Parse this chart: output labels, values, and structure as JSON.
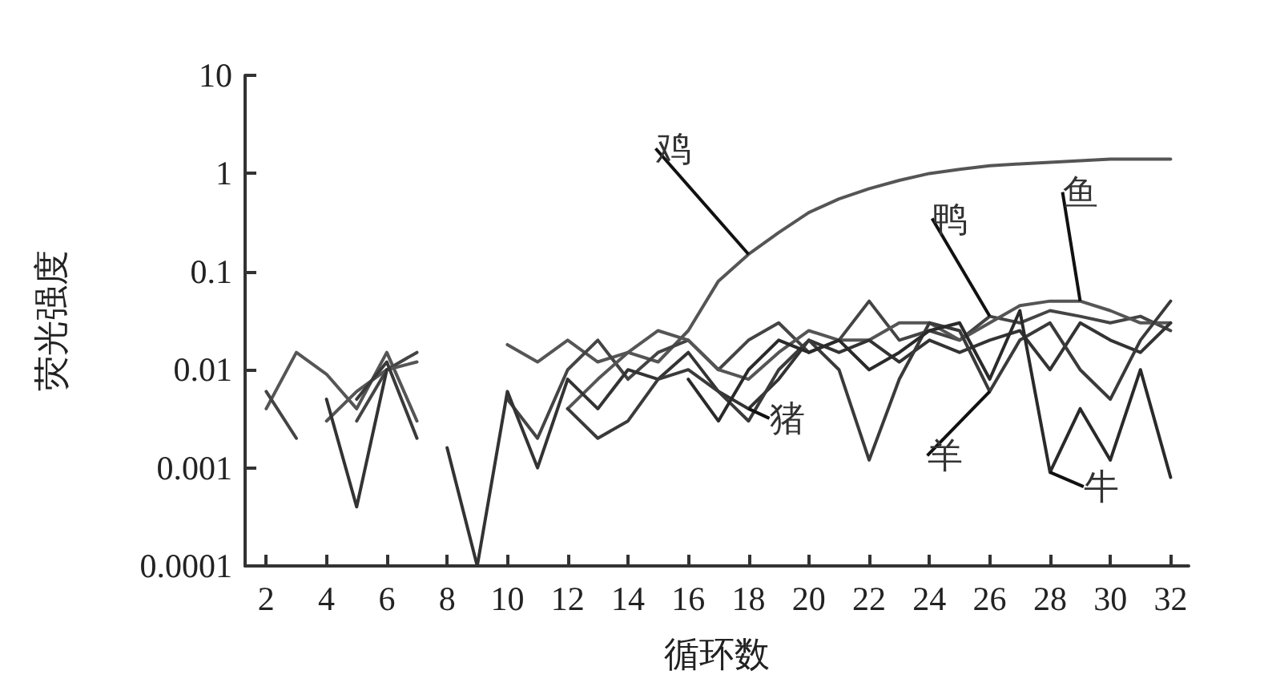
{
  "chart_data": {
    "type": "line",
    "xlabel": "循环数",
    "ylabel": "荧光强度",
    "x": [
      2,
      3,
      4,
      5,
      6,
      7,
      8,
      9,
      10,
      11,
      12,
      13,
      14,
      15,
      16,
      17,
      18,
      19,
      20,
      21,
      22,
      23,
      24,
      25,
      26,
      27,
      28,
      29,
      30,
      31,
      32
    ],
    "xlim": [
      1.3,
      32.6
    ],
    "xticks": [
      2,
      4,
      6,
      8,
      10,
      12,
      14,
      16,
      18,
      20,
      22,
      24,
      26,
      28,
      30,
      32
    ],
    "ylim": [
      0.0001,
      10
    ],
    "yticks": [
      0.0001,
      0.001,
      0.01,
      0.1,
      1,
      10
    ],
    "log": "y",
    "grid": false,
    "legend": false,
    "marker": "none",
    "line_style": "solid",
    "series": [
      {
        "name": "鸡",
        "color": "#555555",
        "values": [
          0.004,
          0.015,
          0.009,
          0.004,
          0.015,
          0.003,
          null,
          null,
          0.018,
          0.012,
          0.02,
          0.012,
          0.015,
          0.012,
          0.025,
          0.08,
          0.15,
          0.25,
          0.4,
          0.55,
          0.7,
          0.85,
          1,
          1.1,
          1.2,
          1.25,
          1.3,
          1.35,
          1.4,
          1.4,
          1.4
        ]
      },
      {
        "name": "鸭",
        "color": "#444444",
        "values": [
          0.006,
          0.002,
          null,
          0.003,
          0.01,
          0.015,
          null,
          null,
          0.005,
          0.002,
          0.01,
          0.02,
          0.008,
          0.015,
          0.02,
          0.01,
          0.02,
          0.03,
          0.015,
          0.02,
          0.05,
          0.02,
          0.025,
          0.02,
          0.035,
          0.03,
          0.04,
          0.035,
          0.03,
          0.035,
          0.025
        ]
      },
      {
        "name": "鱼",
        "color": "#555555",
        "values": [
          null,
          null,
          0.003,
          0.006,
          0.01,
          0.012,
          null,
          null,
          null,
          null,
          0.004,
          0.008,
          0.015,
          0.025,
          0.02,
          0.01,
          0.008,
          0.015,
          0.025,
          0.02,
          0.02,
          0.03,
          0.03,
          0.02,
          0.03,
          0.045,
          0.05,
          0.05,
          0.04,
          0.03,
          0.03
        ]
      },
      {
        "name": "猪",
        "color": "#333333",
        "values": [
          null,
          null,
          0.005,
          0.0004,
          0.01,
          null,
          0.0016,
          0.0001,
          0.006,
          0.001,
          0.008,
          0.004,
          0.01,
          0.008,
          0.015,
          0.006,
          0.004,
          0.008,
          0.02,
          0.015,
          0.02,
          0.012,
          0.02,
          0.015,
          0.02,
          0.025,
          0.01,
          0.03,
          0.02,
          0.015,
          0.03
        ]
      },
      {
        "name": "羊",
        "color": "#3a3a3a",
        "values": [
          null,
          null,
          null,
          0.005,
          0.012,
          0.002,
          null,
          null,
          null,
          null,
          0.004,
          0.002,
          0.003,
          0.008,
          0.01,
          0.006,
          0.003,
          0.01,
          0.02,
          0.01,
          0.0012,
          0.008,
          0.03,
          0.025,
          0.006,
          0.02,
          0.03,
          0.01,
          0.005,
          0.02,
          0.05
        ]
      },
      {
        "name": "牛",
        "color": "#2a2a2a",
        "values": [
          null,
          null,
          null,
          null,
          null,
          null,
          null,
          null,
          null,
          null,
          null,
          null,
          null,
          null,
          0.008,
          0.003,
          0.01,
          0.02,
          0.015,
          0.02,
          0.01,
          0.015,
          0.025,
          0.03,
          0.008,
          0.04,
          0.0009,
          0.004,
          0.0012,
          0.01,
          0.0008
        ]
      }
    ]
  }
}
